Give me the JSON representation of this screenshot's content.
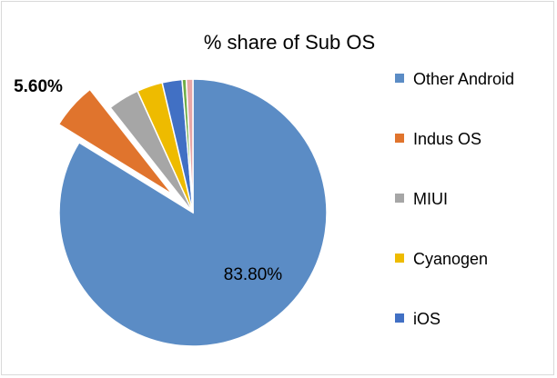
{
  "chart_data": {
    "type": "pie",
    "title": "% share of Sub OS",
    "legend_position": "right",
    "slices": [
      {
        "label": "Other Android",
        "value": 83.8,
        "color": "#5b8cc5"
      },
      {
        "label": "Indus OS",
        "value": 5.6,
        "color": "#e0742d",
        "exploded": true
      },
      {
        "label": "MIUI",
        "value": 3.8,
        "color": "#a6a6a6"
      },
      {
        "label": "Cyanogen",
        "value": 3.1,
        "color": "#eebb00"
      },
      {
        "label": "iOS",
        "value": 2.4,
        "color": "#4170c4"
      },
      {
        "label": "",
        "value": 0.5,
        "color": "#70ad47"
      },
      {
        "label": "",
        "value": 0.8,
        "color": "#e8a6a6"
      }
    ],
    "data_labels": [
      {
        "slice": 0,
        "text": "83.80%"
      },
      {
        "slice": 1,
        "text": "5.60%"
      }
    ],
    "legend": [
      {
        "label": "Other Android",
        "color": "#5b8cc5"
      },
      {
        "label": "Indus OS",
        "color": "#e0742d"
      },
      {
        "label": "MIUI",
        "color": "#a6a6a6"
      },
      {
        "label": "Cyanogen",
        "color": "#eebb00"
      },
      {
        "label": "iOS",
        "color": "#4170c4"
      }
    ]
  }
}
